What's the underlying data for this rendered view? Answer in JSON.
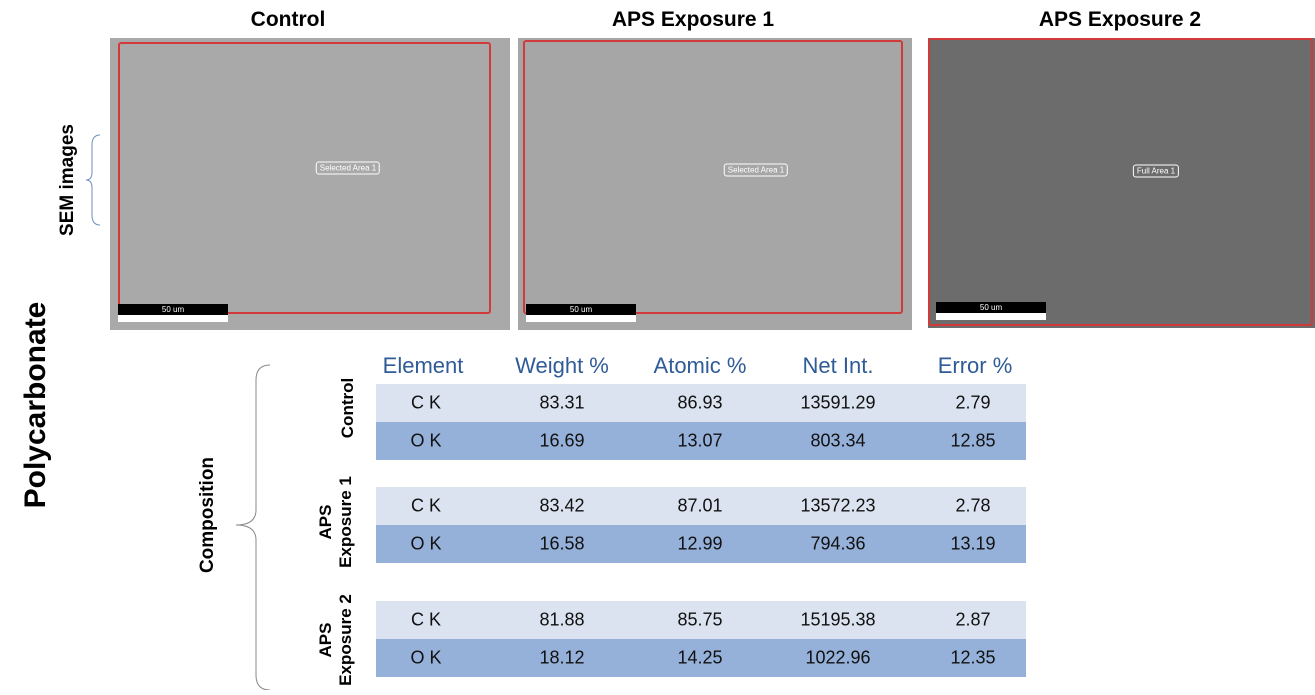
{
  "side_label": "Polycarbonate",
  "sem": {
    "label": "SEM images",
    "panels": [
      {
        "title": "Control",
        "area": "Selected Area 1",
        "scale": "50 um"
      },
      {
        "title": "APS Exposure 1",
        "area": "Selected Area 1",
        "scale": "50 um"
      },
      {
        "title": "APS Exposure 2",
        "area": "Full Area 1",
        "scale": "50 um"
      }
    ]
  },
  "composition": {
    "label": "Composition",
    "header": [
      "Element",
      "Weight %",
      "Atomic %",
      "Net Int.",
      "Error %"
    ],
    "groups": [
      {
        "name": "Control",
        "rows": [
          [
            "C K",
            "83.31",
            "86.93",
            "13591.29",
            "2.79"
          ],
          [
            "O K",
            "16.69",
            "13.07",
            "803.34",
            "12.85"
          ]
        ]
      },
      {
        "name": "APS Exposure 1",
        "rows": [
          [
            "C K",
            "83.42",
            "87.01",
            "13572.23",
            "2.78"
          ],
          [
            "O K",
            "16.58",
            "12.99",
            "794.36",
            "13.19"
          ]
        ]
      },
      {
        "name": "APS Exposure 2",
        "rows": [
          [
            "C K",
            "81.88",
            "85.75",
            "15195.38",
            "2.87"
          ],
          [
            "O K",
            "18.12",
            "14.25",
            "1022.96",
            "12.35"
          ]
        ]
      }
    ]
  }
}
